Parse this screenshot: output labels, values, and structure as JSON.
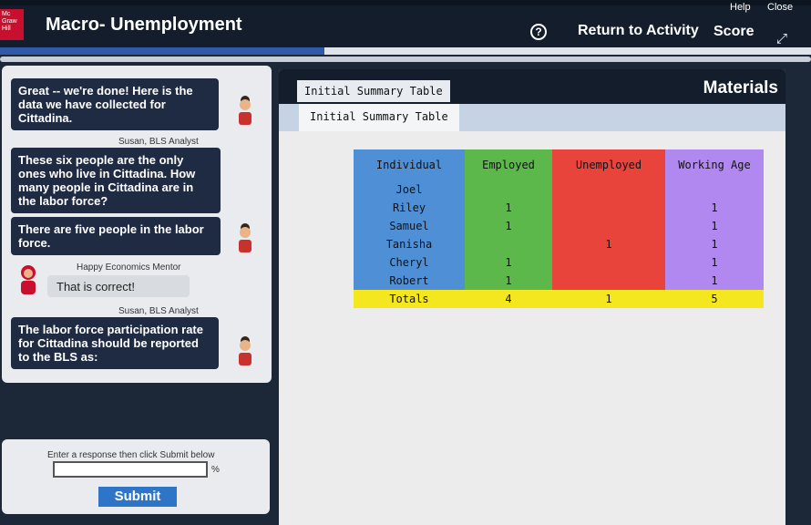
{
  "header": {
    "logo_text": "Mc Graw Hill",
    "title": "Macro- Unemployment",
    "help_label": "?",
    "return_label": "Return to Activity",
    "score_label": "Score",
    "top_help": "Help",
    "top_close": "Close"
  },
  "progress": {
    "fraction": 0.4
  },
  "chat": {
    "messages": [
      {
        "speaker": "",
        "text": "Great -- we're done! Here is the data we have collected for Cittadina."
      },
      {
        "speaker": "Susan, BLS Analyst",
        "text": "These six people are the only ones who live in Cittadina. How many people in Cittadina are in the labor force?"
      },
      {
        "speaker": "",
        "text": "There are five people in the labor force."
      },
      {
        "speaker": "Happy Economics Mentor",
        "text": "That is correct!"
      },
      {
        "speaker": "Susan, BLS Analyst",
        "text": "The labor force participation rate for Cittadina should be reported to the BLS as:"
      }
    ]
  },
  "response": {
    "prompt": "Enter a response then click Submit below",
    "value": "",
    "unit": "%",
    "submit_label": "Submit"
  },
  "materials": {
    "tab_label": "Initial Summary Table",
    "title": "Materials",
    "subtab_label": "Initial Summary Table",
    "table": {
      "headers": [
        "Individual",
        "Employed",
        "Unemployed",
        "Working Age"
      ],
      "rows": [
        [
          "Joel",
          "",
          "",
          ""
        ],
        [
          "Riley",
          "1",
          "",
          "1"
        ],
        [
          "Samuel",
          "1",
          "",
          "1"
        ],
        [
          "Tanisha",
          "",
          "1",
          "1"
        ],
        [
          "Cheryl",
          "1",
          "",
          "1"
        ],
        [
          "Robert",
          "1",
          "",
          "1"
        ]
      ],
      "totals": [
        "Totals",
        "4",
        "1",
        "5"
      ]
    }
  },
  "colors": {
    "individual": "#4f8fd6",
    "employed": "#5db84b",
    "unemployed": "#e8443b",
    "working_age": "#b088ef",
    "totals": "#f5e71f"
  }
}
